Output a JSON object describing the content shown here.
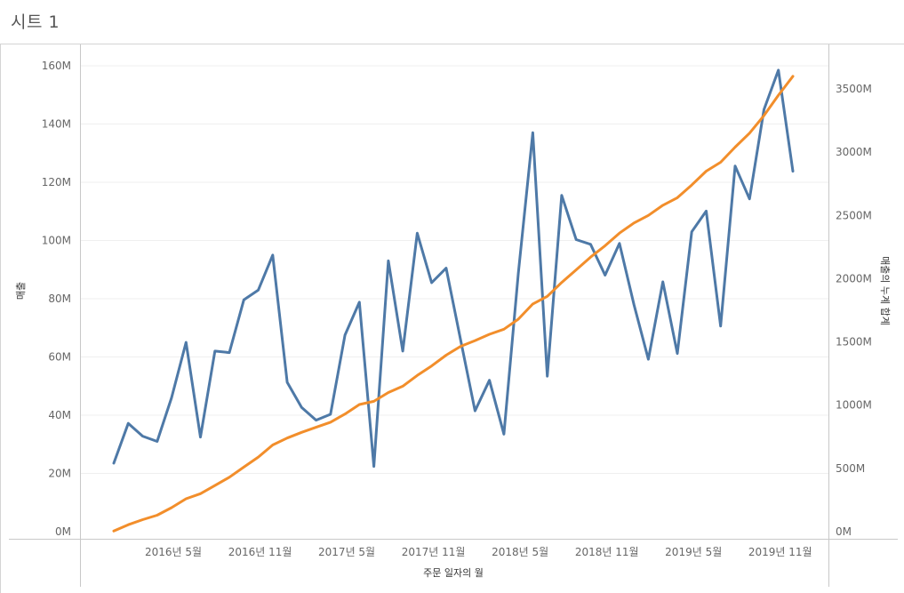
{
  "sheet": {
    "title": "시트 1"
  },
  "chart_data": {
    "type": "line",
    "xlabel": "주문 일자의 월",
    "ylabel_left": "매출",
    "ylabel_right": "매출의 누계 합계",
    "ylim_left": [
      0,
      160000000
    ],
    "ylim_right": [
      0,
      3700000000
    ],
    "grid": "horizontal",
    "left_ticks": [
      "0M",
      "20M",
      "40M",
      "60M",
      "80M",
      "100M",
      "120M",
      "140M",
      "160M"
    ],
    "right_ticks": [
      "0M",
      "500M",
      "1000M",
      "1500M",
      "2000M",
      "2500M",
      "3000M",
      "3500M"
    ],
    "x_tick_labels": [
      "2016년 5월",
      "2016년 11월",
      "2017년 5월",
      "2017년 11월",
      "2018년 5월",
      "2018년 11월",
      "2019년 5월",
      "2019년 11월"
    ],
    "x_tick_indices": [
      4,
      10,
      16,
      22,
      28,
      34,
      40,
      46
    ],
    "x": [
      "2016-01",
      "2016-02",
      "2016-03",
      "2016-04",
      "2016-05",
      "2016-06",
      "2016-07",
      "2016-08",
      "2016-09",
      "2016-10",
      "2016-11",
      "2016-12",
      "2017-01",
      "2017-02",
      "2017-03",
      "2017-04",
      "2017-05",
      "2017-06",
      "2017-07",
      "2017-08",
      "2017-09",
      "2017-10",
      "2017-11",
      "2017-12",
      "2018-01",
      "2018-02",
      "2018-03",
      "2018-04",
      "2018-05",
      "2018-06",
      "2018-07",
      "2018-08",
      "2018-09",
      "2018-10",
      "2018-11",
      "2018-12",
      "2019-01",
      "2019-02",
      "2019-03",
      "2019-04",
      "2019-05",
      "2019-06",
      "2019-07",
      "2019-08",
      "2019-09",
      "2019-10",
      "2019-11",
      "2019-12"
    ],
    "series": [
      {
        "name": "매출",
        "axis": "left",
        "color": "#4e79a7",
        "values": [
          23.5,
          37.2,
          32.8,
          31,
          46,
          65,
          32.5,
          62,
          61.5,
          79.6,
          83,
          95,
          51.3,
          42.7,
          38.3,
          40.3,
          67.5,
          78.8,
          22.4,
          93,
          62,
          102.5,
          85.5,
          90.5,
          66,
          41.5,
          52,
          33.5,
          88.7,
          137,
          53.4,
          115.5,
          100.3,
          98.7,
          88.1,
          99,
          78,
          59.2,
          85.8,
          61.2,
          103,
          110.1,
          70.6,
          125.6,
          114.3,
          145,
          158.5,
          123.8
        ]
      },
      {
        "name": "매출의 누계 합계",
        "axis": "right",
        "color": "#f28e2b",
        "values": [
          0.005,
          0.055,
          0.095,
          0.13,
          0.19,
          0.26,
          0.3,
          0.365,
          0.43,
          0.51,
          0.59,
          0.685,
          0.74,
          0.785,
          0.825,
          0.865,
          0.93,
          1.005,
          1.03,
          1.1,
          1.15,
          1.235,
          1.31,
          1.395,
          1.465,
          1.51,
          1.56,
          1.6,
          1.68,
          1.8,
          1.86,
          1.97,
          2.07,
          2.17,
          2.26,
          2.36,
          2.44,
          2.5,
          2.58,
          2.64,
          2.74,
          2.85,
          2.92,
          3.04,
          3.15,
          3.29,
          3.45,
          3.6
        ]
      }
    ]
  }
}
